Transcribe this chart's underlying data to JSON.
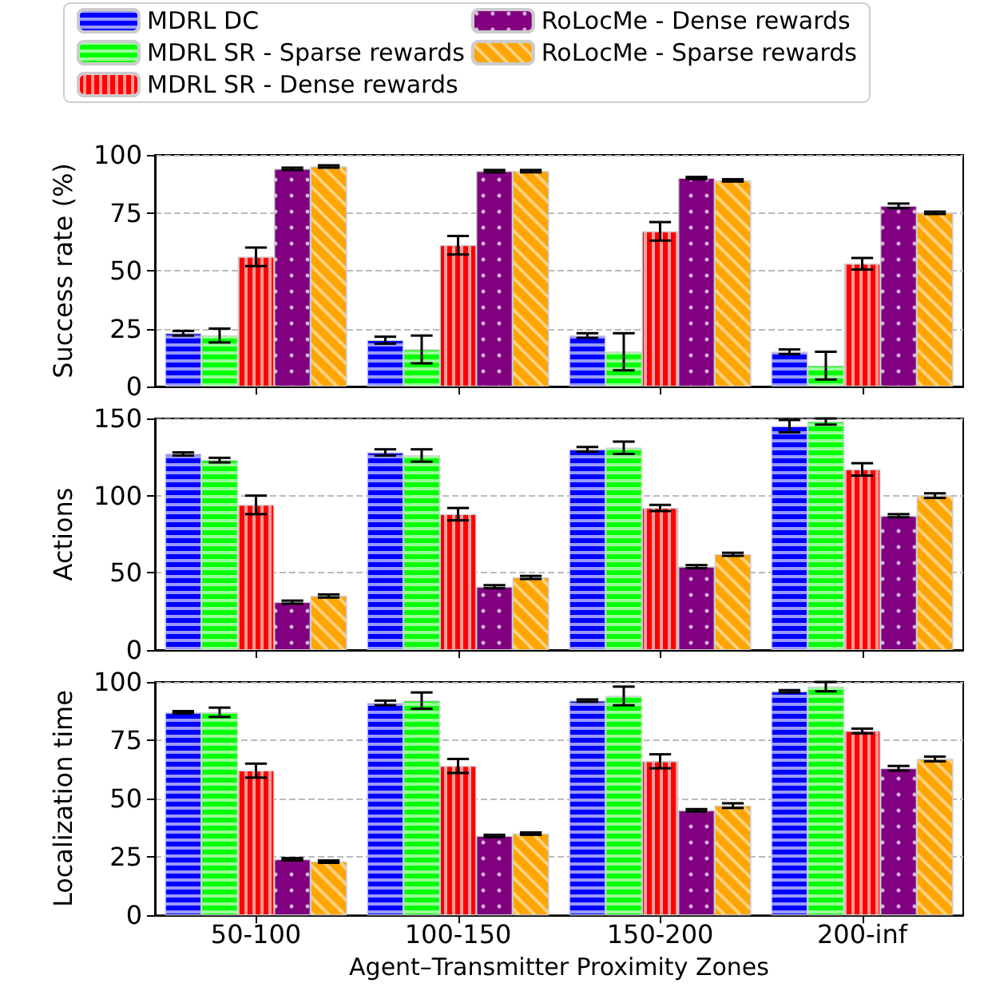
{
  "chart_data": [
    {
      "type": "bar",
      "ylabel": "Success rate (%)",
      "categories": [
        null,
        null,
        null,
        null
      ],
      "ylim": [
        0,
        100
      ],
      "yticks": [
        0,
        25,
        50,
        75,
        100
      ],
      "grid": "y",
      "legend": "top",
      "tick_labels": "y",
      "series": [
        {
          "name": "MDRL DC",
          "color": "#0000ff",
          "values": [
            23,
            20,
            22,
            15
          ],
          "errors": [
            1,
            1.5,
            1,
            1
          ]
        },
        {
          "name": "MDRL SR - Sparse rewards",
          "color": "#00ff00",
          "values": [
            22,
            16,
            15,
            9
          ],
          "errors": [
            3,
            6,
            8,
            6
          ]
        },
        {
          "name": "MDRL SR - Dense rewards",
          "color": "#ff0000",
          "values": [
            56,
            61,
            67,
            53
          ],
          "errors": [
            4,
            4,
            4,
            2.5
          ]
        },
        {
          "name": "RoLocMe - Dense rewards",
          "color": "#800080",
          "values": [
            94,
            93,
            90,
            78
          ],
          "errors": [
            0.5,
            0.5,
            0.5,
            1
          ]
        },
        {
          "name": "RoLocMe - Sparse rewards",
          "color": "#ffa500",
          "values": [
            95,
            93,
            89,
            75
          ],
          "errors": [
            0.5,
            0.5,
            0.5,
            0.5
          ]
        }
      ]
    },
    {
      "type": "bar",
      "ylabel": "Actions",
      "categories": [
        null,
        null,
        null,
        null
      ],
      "ylim": [
        0,
        150
      ],
      "yticks": [
        0,
        50,
        100,
        150
      ],
      "grid": "y",
      "tick_labels": "y",
      "series": [
        {
          "color": "#0000ff",
          "values": [
            127,
            128,
            130,
            145
          ],
          "errors": [
            1,
            2,
            1.5,
            4
          ]
        },
        {
          "color": "#00ff00",
          "values": [
            123,
            126,
            131,
            148
          ],
          "errors": [
            1.5,
            4,
            4,
            2
          ]
        },
        {
          "color": "#ff0000",
          "values": [
            94,
            88,
            92,
            117
          ],
          "errors": [
            6,
            4,
            2,
            4
          ]
        },
        {
          "color": "#800080",
          "values": [
            31,
            41,
            54,
            87
          ],
          "errors": [
            1,
            1,
            1,
            1
          ]
        },
        {
          "color": "#ffa500",
          "values": [
            35,
            47,
            62,
            100
          ],
          "errors": [
            1,
            1,
            1,
            1.5
          ]
        }
      ]
    },
    {
      "type": "bar",
      "ylabel": "Localization time",
      "xlabel": "Agent–Transmitter Proximity Zones",
      "categories": [
        "50-100",
        "100-150",
        "150-200",
        "200-inf"
      ],
      "ylim": [
        0,
        100
      ],
      "yticks": [
        0,
        25,
        50,
        75,
        100
      ],
      "grid": "y",
      "series": [
        {
          "color": "#0000ff",
          "values": [
            87,
            91,
            92,
            96
          ],
          "errors": [
            0.5,
            1,
            0.5,
            0.5
          ]
        },
        {
          "color": "#00ff00",
          "values": [
            87,
            92,
            94,
            98
          ],
          "errors": [
            2,
            3.5,
            4,
            2
          ]
        },
        {
          "color": "#ff0000",
          "values": [
            62,
            64,
            66,
            79
          ],
          "errors": [
            3,
            3,
            3,
            1
          ]
        },
        {
          "color": "#800080",
          "values": [
            24,
            34,
            45,
            63
          ],
          "errors": [
            0.5,
            0.5,
            0.5,
            1
          ]
        },
        {
          "color": "#ffa500",
          "values": [
            23,
            35,
            47,
            67
          ],
          "errors": [
            0.5,
            0.5,
            1,
            1
          ]
        }
      ]
    }
  ]
}
